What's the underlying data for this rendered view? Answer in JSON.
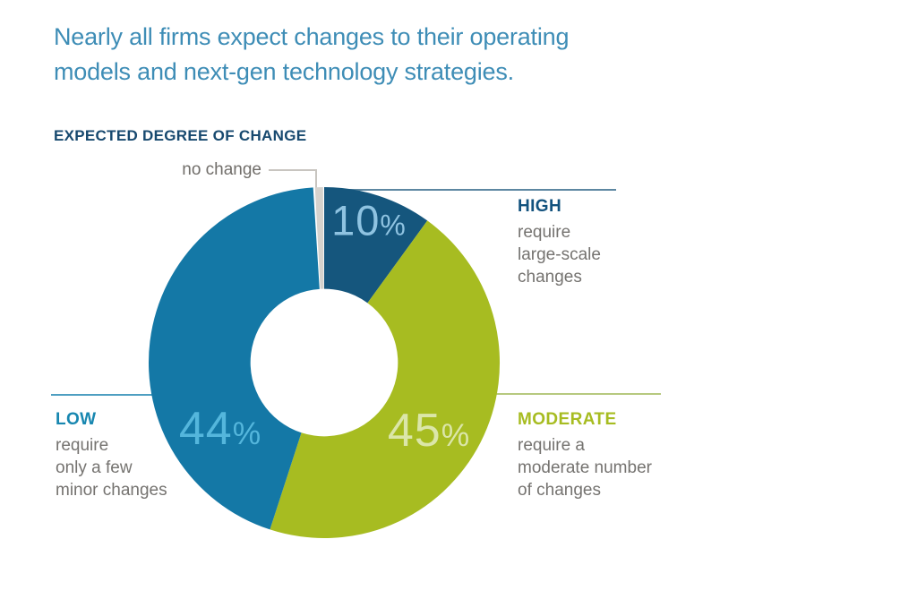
{
  "page": {
    "title": "Nearly all firms expect changes to their operating models and next-gen technology strategies.",
    "section_heading": "EXPECTED DEGREE OF CHANGE"
  },
  "chart_data": {
    "type": "pie",
    "variant": "donut",
    "title": "EXPECTED DEGREE OF CHANGE",
    "units": "percent of firms",
    "start_angle_deg": 0,
    "direction": "clockwise",
    "inner_radius_ratio": 0.42,
    "legend_position": "callouts",
    "percent_sign": "%",
    "segments": [
      {
        "id": "high",
        "label": "HIGH",
        "description_lines": [
          "require",
          "large-scale",
          "changes"
        ],
        "value": 10,
        "value_label": "10%",
        "color": "#15567d",
        "value_label_color": "#8fc3e1",
        "title_color": "#12527e",
        "callout_line_color": "#5d87a1"
      },
      {
        "id": "moderate",
        "label": "MODERATE",
        "description_lines": [
          "require a",
          "moderate number",
          "of changes"
        ],
        "value": 45,
        "value_label": "45%",
        "color": "#a7bc21",
        "value_label_color": "#dbe6a9",
        "title_color": "#a7bc21",
        "callout_line_color": "#b7c97f"
      },
      {
        "id": "low",
        "label": "LOW",
        "description_lines": [
          "require",
          "only a few",
          "minor changes"
        ],
        "value": 44,
        "value_label": "44%",
        "color": "#1478a6",
        "value_label_color": "#54b6dc",
        "title_color": "#1887b0",
        "callout_line_color": "#4e9fc1"
      },
      {
        "id": "no_change",
        "label": "no change",
        "value": 1,
        "color": "#d5d2cd",
        "gap_start": 0.6,
        "gap_end": 0.35,
        "label_color": "#716e6a",
        "callout_line_color": "#c8c5c0"
      }
    ]
  },
  "colors": {
    "title_text": "#3e8db6",
    "heading_text": "#17496f",
    "description_text": "#757370",
    "background": "#ffffff"
  }
}
